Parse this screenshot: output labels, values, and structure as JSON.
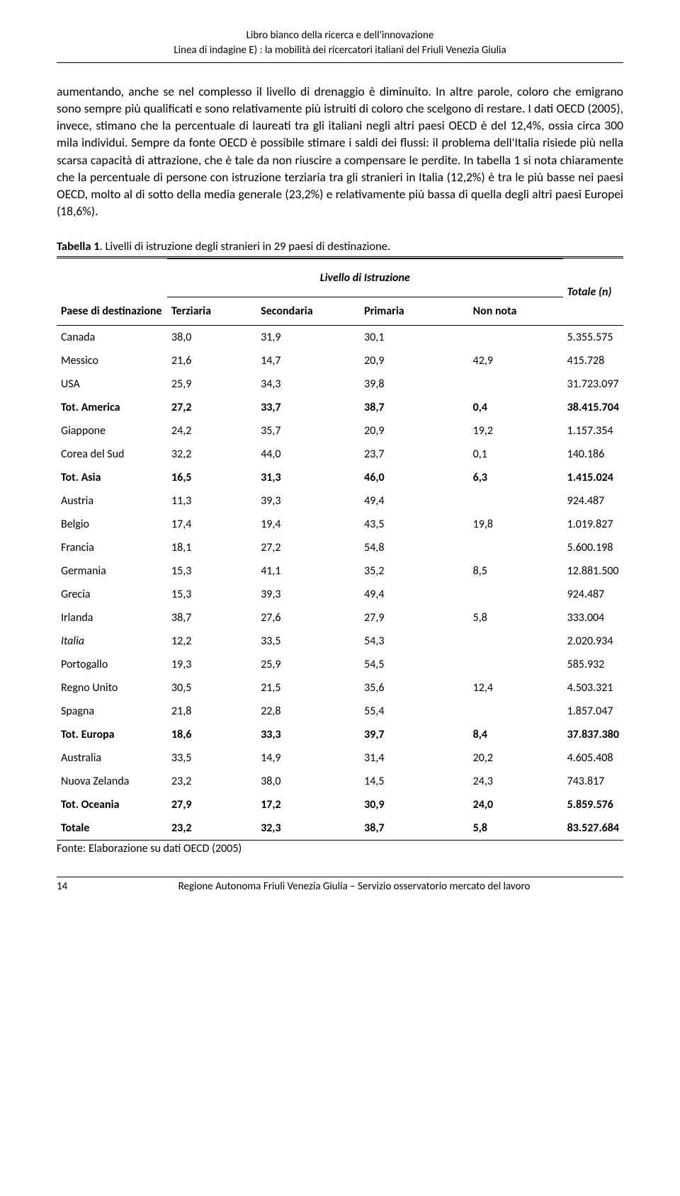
{
  "header": {
    "line1": "Libro bianco della ricerca e dell'innovazione",
    "line2": "Linea di indagine E) : la mobilità dei ricercatori italiani del Friuli Venezia Giulia"
  },
  "body_paragraph": "aumentando, anche se nel complesso il livello di drenaggio è diminuito. In altre parole, coloro che emigrano sono sempre più qualificati e sono relativamente più istruiti di coloro che scelgono di restare. I dati OECD (2005), invece, stimano che la percentuale di laureati tra gli italiani negli altri paesi OECD è del 12,4%, ossia circa 300 mila individui. Sempre da fonte OECD è possibile stimare i saldi dei flussi: il problema dell'Italia risiede più nella scarsa capacità di attrazione, che è tale da non riuscire a compensare le perdite. In tabella 1 si nota chiaramente che la percentuale di persone con istruzione terziaria tra gli stranieri in Italia (12,2%) è tra le più basse nei paesi OECD, molto al di sotto della media generale (23,2%) e relativamente più bassa di quella degli altri paesi Europei (18,6%).",
  "table": {
    "caption_bold": "Tabella 1",
    "caption_rest": ". Livelli di istruzione degli stranieri in 29 paesi di destinazione.",
    "super_header": "Livello di Istruzione",
    "col_paese": "Paese di destinazione",
    "col_terziaria": "Terziaria",
    "col_secondaria": "Secondaria",
    "col_primaria": "Primaria",
    "col_nonnota": "Non nota",
    "col_totale": "Totale (n)",
    "rows": [
      {
        "paese": "Canada",
        "terz": "38,0",
        "sec": "31,9",
        "prim": "30,1",
        "non": "",
        "tot": "5.355.575",
        "bold": false,
        "italic": false
      },
      {
        "paese": "Messico",
        "terz": "21,6",
        "sec": "14,7",
        "prim": "20,9",
        "non": "42,9",
        "tot": "415.728",
        "bold": false,
        "italic": false
      },
      {
        "paese": "USA",
        "terz": "25,9",
        "sec": "34,3",
        "prim": "39,8",
        "non": "",
        "tot": "31.723.097",
        "bold": false,
        "italic": false
      },
      {
        "paese": "Tot. America",
        "terz": "27,2",
        "sec": "33,7",
        "prim": "38,7",
        "non": "0,4",
        "tot": "38.415.704",
        "bold": true,
        "italic": false
      },
      {
        "paese": "Giappone",
        "terz": "24,2",
        "sec": "35,7",
        "prim": "20,9",
        "non": "19,2",
        "tot": "1.157.354",
        "bold": false,
        "italic": false
      },
      {
        "paese": "Corea del Sud",
        "terz": "32,2",
        "sec": "44,0",
        "prim": "23,7",
        "non": "0,1",
        "tot": "140.186",
        "bold": false,
        "italic": false
      },
      {
        "paese": "Tot. Asia",
        "terz": "16,5",
        "sec": "31,3",
        "prim": "46,0",
        "non": "6,3",
        "tot": "1.415.024",
        "bold": true,
        "italic": false
      },
      {
        "paese": "Austria",
        "terz": "11,3",
        "sec": "39,3",
        "prim": "49,4",
        "non": "",
        "tot": "924.487",
        "bold": false,
        "italic": false
      },
      {
        "paese": "Belgio",
        "terz": "17,4",
        "sec": "19,4",
        "prim": "43,5",
        "non": "19,8",
        "tot": "1.019.827",
        "bold": false,
        "italic": false
      },
      {
        "paese": "Francia",
        "terz": "18,1",
        "sec": "27,2",
        "prim": "54,8",
        "non": "",
        "tot": "5.600.198",
        "bold": false,
        "italic": false
      },
      {
        "paese": "Germania",
        "terz": "15,3",
        "sec": "41,1",
        "prim": "35,2",
        "non": "8,5",
        "tot": "12.881.500",
        "bold": false,
        "italic": false
      },
      {
        "paese": "Grecia",
        "terz": "15,3",
        "sec": "39,3",
        "prim": "49,4",
        "non": "",
        "tot": "924.487",
        "bold": false,
        "italic": false
      },
      {
        "paese": "Irlanda",
        "terz": "38,7",
        "sec": "27,6",
        "prim": "27,9",
        "non": "5,8",
        "tot": "333.004",
        "bold": false,
        "italic": false
      },
      {
        "paese": "Italia",
        "terz": "12,2",
        "sec": "33,5",
        "prim": "54,3",
        "non": "",
        "tot": "2.020.934",
        "bold": false,
        "italic": true
      },
      {
        "paese": "Portogallo",
        "terz": "19,3",
        "sec": "25,9",
        "prim": "54,5",
        "non": "",
        "tot": "585.932",
        "bold": false,
        "italic": false
      },
      {
        "paese": "Regno Unito",
        "terz": "30,5",
        "sec": "21,5",
        "prim": "35,6",
        "non": "12,4",
        "tot": "4.503.321",
        "bold": false,
        "italic": false
      },
      {
        "paese": "Spagna",
        "terz": "21,8",
        "sec": "22,8",
        "prim": "55,4",
        "non": "",
        "tot": "1.857.047",
        "bold": false,
        "italic": false
      },
      {
        "paese": "Tot. Europa",
        "terz": "18,6",
        "sec": "33,3",
        "prim": "39,7",
        "non": "8,4",
        "tot": "37.837.380",
        "bold": true,
        "italic": false
      },
      {
        "paese": "Australia",
        "terz": "33,5",
        "sec": "14,9",
        "prim": "31,4",
        "non": "20,2",
        "tot": "4.605.408",
        "bold": false,
        "italic": false
      },
      {
        "paese": "Nuova Zelanda",
        "terz": "23,2",
        "sec": "38,0",
        "prim": "14,5",
        "non": "24,3",
        "tot": "743.817",
        "bold": false,
        "italic": false
      },
      {
        "paese": "Tot. Oceania",
        "terz": "27,9",
        "sec": "17,2",
        "prim": "30,9",
        "non": "24,0",
        "tot": "5.859.576",
        "bold": true,
        "italic": false
      },
      {
        "paese": "Totale",
        "terz": "23,2",
        "sec": "32,3",
        "prim": "38,7",
        "non": "5,8",
        "tot": "83.527.684",
        "bold": true,
        "italic": false
      }
    ],
    "source": "Fonte: Elaborazione su dati OECD (2005)"
  },
  "footer": {
    "page": "14",
    "text": "Regione Autonoma Friuli Venezia Giulia – Servizio osservatorio mercato del lavoro"
  }
}
